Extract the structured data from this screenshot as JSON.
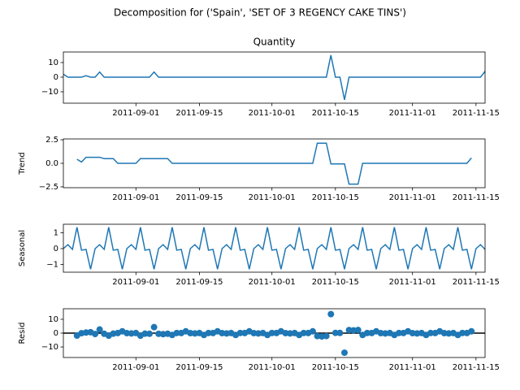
{
  "title": "Decomposition for ('Spain', 'SET OF 3 REGENCY CAKE TINS')",
  "x": [
    "2011-08-16",
    "2011-08-17",
    "2011-08-18",
    "2011-08-19",
    "2011-08-20",
    "2011-08-21",
    "2011-08-22",
    "2011-08-23",
    "2011-08-24",
    "2011-08-25",
    "2011-08-26",
    "2011-08-27",
    "2011-08-28",
    "2011-08-29",
    "2011-08-30",
    "2011-08-31",
    "2011-09-01",
    "2011-09-02",
    "2011-09-03",
    "2011-09-04",
    "2011-09-05",
    "2011-09-06",
    "2011-09-07",
    "2011-09-08",
    "2011-09-09",
    "2011-09-10",
    "2011-09-11",
    "2011-09-12",
    "2011-09-13",
    "2011-09-14",
    "2011-09-15",
    "2011-09-16",
    "2011-09-17",
    "2011-09-18",
    "2011-09-19",
    "2011-09-20",
    "2011-09-21",
    "2011-09-22",
    "2011-09-23",
    "2011-09-24",
    "2011-09-25",
    "2011-09-26",
    "2011-09-27",
    "2011-09-28",
    "2011-09-29",
    "2011-09-30",
    "2011-10-01",
    "2011-10-02",
    "2011-10-03",
    "2011-10-04",
    "2011-10-05",
    "2011-10-06",
    "2011-10-07",
    "2011-10-08",
    "2011-10-09",
    "2011-10-10",
    "2011-10-11",
    "2011-10-12",
    "2011-10-13",
    "2011-10-14",
    "2011-10-15",
    "2011-10-16",
    "2011-10-17",
    "2011-10-18",
    "2011-10-19",
    "2011-10-20",
    "2011-10-21",
    "2011-10-22",
    "2011-10-23",
    "2011-10-24",
    "2011-10-25",
    "2011-10-26",
    "2011-10-27",
    "2011-10-28",
    "2011-10-29",
    "2011-10-30",
    "2011-10-31",
    "2011-11-01",
    "2011-11-02",
    "2011-11-03",
    "2011-11-04",
    "2011-11-05",
    "2011-11-06",
    "2011-11-07",
    "2011-11-08",
    "2011-11-09",
    "2011-11-10",
    "2011-11-11",
    "2011-11-12",
    "2011-11-13",
    "2011-11-14",
    "2011-11-15",
    "2011-11-16",
    "2011-11-17"
  ],
  "xlim": [
    "2011-08-16",
    "2011-11-17"
  ],
  "xticks": [
    "2011-09-01",
    "2011-09-15",
    "2011-10-01",
    "2011-10-15",
    "2011-11-01",
    "2011-11-15"
  ],
  "chart_data": [
    {
      "type": "line",
      "title": "Quantity",
      "series": [
        {
          "color": "#1f77b4",
          "values": [
            2,
            0,
            0,
            0,
            0,
            1,
            0,
            0,
            3.5,
            0,
            0,
            0,
            0,
            0,
            0,
            0,
            0,
            0,
            0,
            0,
            3.5,
            0,
            0,
            0,
            0,
            0,
            0,
            0,
            0,
            0,
            0,
            0,
            0,
            0,
            0,
            0,
            0,
            0,
            0,
            0,
            0,
            0,
            0,
            0,
            0,
            0,
            0,
            0,
            0,
            0,
            0,
            0,
            0,
            0,
            0,
            0,
            0,
            0,
            0,
            15,
            0,
            0,
            -15.5,
            0,
            0,
            0,
            0,
            0,
            0,
            0,
            0,
            0,
            0,
            0,
            0,
            0,
            0,
            0,
            0,
            0,
            0,
            0,
            0,
            0,
            0,
            0,
            0,
            0,
            0,
            0,
            0,
            0,
            0,
            4
          ]
        }
      ],
      "ylim": [
        -17.8,
        17.2
      ],
      "yticks": [
        {
          "value": -10,
          "label": "−10"
        },
        0,
        10
      ]
    },
    {
      "type": "line",
      "y_label": "Trend",
      "series": [
        {
          "color": "#1f77b4",
          "values": [
            null,
            null,
            null,
            0.43,
            0.14,
            0.64,
            0.64,
            0.64,
            0.64,
            0.5,
            0.5,
            0.5,
            0,
            0,
            0,
            0,
            0,
            0.5,
            0.5,
            0.5,
            0.5,
            0.5,
            0.5,
            0.5,
            0,
            0,
            0,
            0,
            0,
            0,
            0,
            0,
            0,
            0,
            0,
            0,
            0,
            0,
            0,
            0,
            0,
            0,
            0,
            0,
            0,
            0,
            0,
            0,
            0,
            0,
            0,
            0,
            0,
            0,
            0,
            0,
            2.14,
            2.14,
            2.14,
            -0.07,
            -0.07,
            -0.07,
            -0.07,
            -2.21,
            -2.21,
            -2.21,
            0,
            0,
            0,
            0,
            0,
            0,
            0,
            0,
            0,
            0,
            0,
            0,
            0,
            0,
            0,
            0,
            0,
            0,
            0,
            0,
            0,
            0,
            0,
            0,
            0.57,
            null,
            null,
            null
          ]
        }
      ],
      "ylim": [
        -2.59,
        2.59
      ],
      "yticks": [
        {
          "value": -2.5,
          "label": "−2.5"
        },
        {
          "value": 0,
          "label": "0.0"
        },
        2.5
      ]
    },
    {
      "type": "line",
      "y_label": "Seasonal",
      "series": [
        {
          "color": "#1f77b4",
          "values": [
            0,
            0.25,
            -0.05,
            1.35,
            -0.1,
            -0.05,
            -1.3,
            0,
            0.25,
            -0.05,
            1.35,
            -0.1,
            -0.05,
            -1.3,
            0,
            0.25,
            -0.05,
            1.35,
            -0.1,
            -0.05,
            -1.3,
            0,
            0.25,
            -0.05,
            1.35,
            -0.1,
            -0.05,
            -1.3,
            0,
            0.25,
            -0.05,
            1.35,
            -0.1,
            -0.05,
            -1.3,
            0,
            0.25,
            -0.05,
            1.35,
            -0.1,
            -0.05,
            -1.3,
            0,
            0.25,
            -0.05,
            1.35,
            -0.1,
            -0.05,
            -1.3,
            0,
            0.25,
            -0.05,
            1.35,
            -0.1,
            -0.05,
            -1.3,
            0,
            0.25,
            -0.05,
            1.35,
            -0.1,
            -0.05,
            -1.3,
            0,
            0.25,
            -0.05,
            1.35,
            -0.1,
            -0.05,
            -1.3,
            0,
            0.25,
            -0.05,
            1.35,
            -0.1,
            -0.05,
            -1.3,
            0,
            0.25,
            -0.05,
            1.35,
            -0.1,
            -0.05,
            -1.3,
            0,
            0.25,
            -0.05,
            1.35,
            -0.1,
            -0.05,
            -1.3,
            0,
            0.25,
            -0.05
          ]
        }
      ],
      "ylim": [
        -1.49,
        1.54
      ],
      "yticks": [
        {
          "value": -1,
          "label": "−1"
        },
        0,
        1
      ]
    },
    {
      "type": "scatter",
      "y_label": "Resid",
      "hline": 0,
      "hline_color": "#000000",
      "series": [
        {
          "color": "#1f77b4",
          "values": [
            null,
            null,
            null,
            -1.78,
            -0.04,
            0.41,
            0.66,
            -0.64,
            2.61,
            -0.45,
            -1.85,
            -0.4,
            0.05,
            1.3,
            0,
            -0.25,
            0.05,
            -1.85,
            -0.4,
            -0.45,
            4.3,
            -0.5,
            -0.75,
            -0.45,
            -1.35,
            0.1,
            0.05,
            1.3,
            0,
            -0.25,
            0.05,
            -1.35,
            0.1,
            0.05,
            1.3,
            0,
            -0.25,
            0.05,
            -1.35,
            0.1,
            0.05,
            1.3,
            0,
            -0.25,
            0.05,
            -1.35,
            0.1,
            0.05,
            1.3,
            0,
            -0.25,
            0.05,
            -1.35,
            0.1,
            0.05,
            1.3,
            -2.14,
            -2.39,
            -2.09,
            13.72,
            0.17,
            0.12,
            -14.13,
            2.21,
            1.96,
            2.26,
            -1.35,
            0.1,
            0.05,
            1.3,
            0,
            -0.25,
            0.05,
            -1.35,
            0.1,
            0.05,
            1.3,
            0,
            -0.25,
            0.05,
            -1.35,
            0.1,
            0.05,
            1.3,
            0,
            -0.25,
            0.05,
            -1.35,
            0.1,
            0.05,
            1.3,
            null,
            null,
            null
          ]
        }
      ],
      "ylim": [
        -17.6,
        17.6
      ],
      "yticks": [
        {
          "value": -10,
          "label": "−10"
        },
        0,
        10
      ]
    }
  ]
}
